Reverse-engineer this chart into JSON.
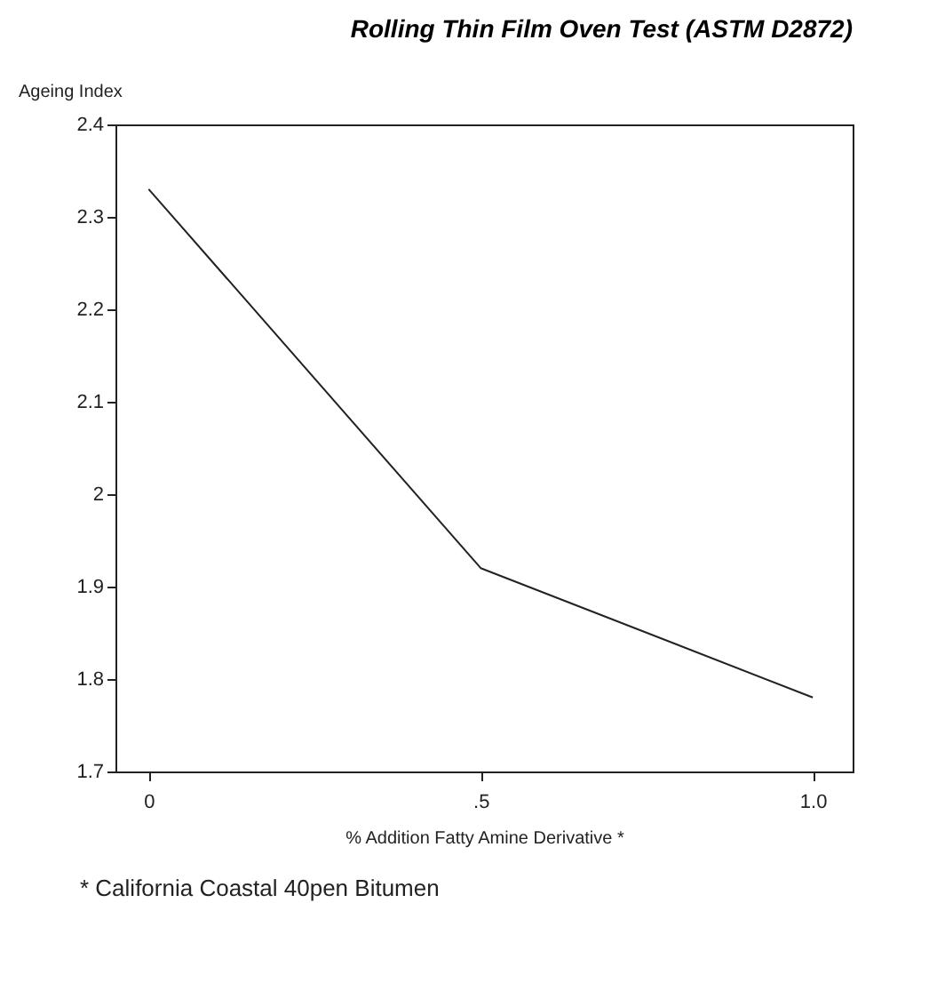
{
  "chart_data": {
    "type": "line",
    "title": "Rolling Thin Film Oven Test (ASTM D2872)",
    "ylabel": "Ageing Index",
    "xlabel": "% Addition Fatty Amine Derivative *",
    "x": [
      0,
      0.5,
      1.0
    ],
    "series": [
      {
        "color": "#222222",
        "values": [
          2.33,
          1.92,
          1.78
        ]
      }
    ],
    "xlim": [
      -0.05,
      1.06
    ],
    "xticks": [
      {
        "value": 0,
        "label": "0"
      },
      {
        "value": 0.5,
        "label": ".5"
      },
      {
        "value": 1.0,
        "label": "1.0"
      }
    ],
    "ylim": [
      1.7,
      2.4
    ],
    "yticks": [
      1.7,
      1.8,
      1.9,
      2,
      2.1,
      2.2,
      2.3,
      2.4
    ],
    "grid": false,
    "marker": "none",
    "line_style": "solid",
    "annotations": [
      "* California Coastal 40pen Bitumen"
    ]
  }
}
